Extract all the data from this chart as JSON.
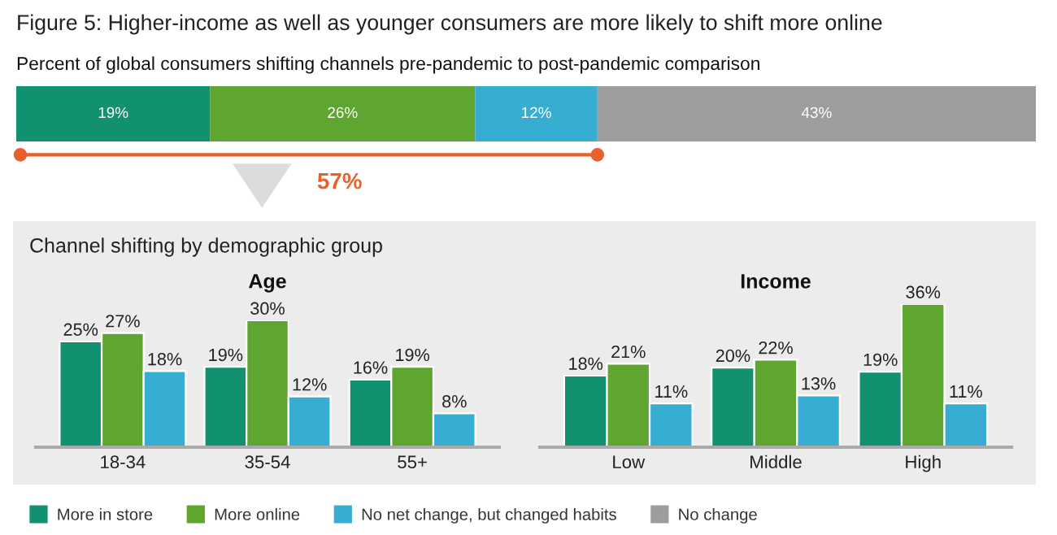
{
  "chart_data": [
    {
      "type": "bar",
      "title": "Figure 5: Higher-income as well as younger consumers are more likely to shift more online",
      "subtitle": "Percent of global consumers shifting channels pre-pandemic to post-pandemic comparison",
      "orientation": "horizontal",
      "stacked": true,
      "categories": [
        null
      ],
      "xlim": [
        0,
        100
      ],
      "tick_labels": false,
      "legend": "bottom",
      "annotations": [
        "57%"
      ],
      "series": [
        {
          "name": "More in store",
          "color": "#11916f",
          "values": [
            19
          ],
          "value_labels": [
            "19%"
          ]
        },
        {
          "name": "More online",
          "color": "#5ea630",
          "values": [
            26
          ],
          "value_labels": [
            "26%"
          ]
        },
        {
          "name": "No net change, but changed habits",
          "color": "#37add2",
          "values": [
            12
          ],
          "value_labels": [
            "12%"
          ]
        },
        {
          "name": "No change",
          "color": "#9d9d9d",
          "values": [
            43
          ],
          "value_labels": [
            "43%"
          ]
        }
      ]
    },
    {
      "type": "bar",
      "subtitle": "Channel shifting by demographic group",
      "title": "Age",
      "categories": [
        "18-34",
        "35-54",
        "55+"
      ],
      "tick_labels": "x",
      "series": [
        {
          "color": "#11916f",
          "values": [
            25,
            19,
            16
          ],
          "value_labels": [
            "25%",
            "19%",
            "16%"
          ]
        },
        {
          "color": "#5ea630",
          "values": [
            27,
            30,
            19
          ],
          "value_labels": [
            "27%",
            "30%",
            "19%"
          ]
        },
        {
          "color": "#37add2",
          "values": [
            18,
            12,
            8
          ],
          "value_labels": [
            "18%",
            "12%",
            "8%"
          ]
        }
      ]
    },
    {
      "type": "bar",
      "title": "Income",
      "categories": [
        "Low",
        "Middle",
        "High"
      ],
      "tick_labels": "x",
      "series": [
        {
          "color": "#11916f",
          "values": [
            18,
            20,
            19
          ],
          "value_labels": [
            "18%",
            "20%",
            "19%"
          ]
        },
        {
          "color": "#5ea630",
          "values": [
            21,
            22,
            36
          ],
          "value_labels": [
            "21%",
            "22%",
            "36%"
          ]
        },
        {
          "color": "#37add2",
          "values": [
            11,
            13,
            11
          ],
          "value_labels": [
            "11%",
            "13%",
            "11%"
          ]
        }
      ]
    }
  ]
}
